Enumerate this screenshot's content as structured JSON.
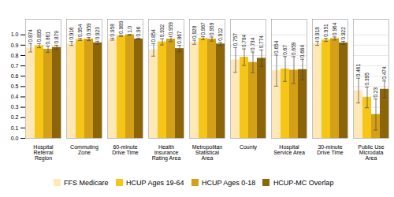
{
  "chart_data": {
    "type": "bar",
    "categories": [
      "Hospital\nReferral\nRegion",
      "Commuting\nZone",
      "60-minute\nDrive Time",
      "Health\nInsurance\nRating Area",
      "Metropolitan\nStatistical\nArea",
      "County",
      "Hospital\nService Area",
      "30-minute\nDrive Time",
      "Public Use\nMicrodata\nArea"
    ],
    "series": [
      {
        "name": "FFS Medicare",
        "color": "#FFE8B8",
        "values": [
          0.874,
          0.916,
          0.958,
          0.854,
          0.928,
          0.757,
          0.654,
          0.918,
          0.461
        ],
        "value_labels": [
          "0.874",
          "0.916",
          "0.958",
          "0.854",
          "0.928",
          "0.757",
          "0.654",
          "0.918",
          "0.461"
        ],
        "errors": [
          0.04,
          0.02,
          0.01,
          0.06,
          0.02,
          0.12,
          0.15,
          0.02,
          0.12
        ]
      },
      {
        "name": "HCUP Ages 19-64",
        "color": "#F5C518",
        "values": [
          0.895,
          0.954,
          0.989,
          0.932,
          0.967,
          0.784,
          0.67,
          0.951,
          0.395
        ],
        "value_labels": [
          "0.895",
          "0.954",
          "0.989",
          "0.932",
          "0.967",
          "0.784",
          "0.67",
          "0.951",
          "0.395"
        ],
        "errors": [
          0.02,
          0.01,
          0.005,
          0.03,
          0.015,
          0.08,
          0.12,
          0.015,
          0.1
        ]
      },
      {
        "name": "HCUP Ages 0-18",
        "color": "#D4A017",
        "values": [
          0.861,
          0.959,
          1.0,
          0.959,
          0.959,
          0.734,
          0.659,
          0.964,
          0.23
        ],
        "value_labels": [
          "0.861",
          "0.959",
          "1.0",
          "0.959",
          "0.959",
          "0.734",
          "0.659",
          "0.964",
          "0.23"
        ],
        "errors": [
          0.03,
          0.015,
          0.003,
          0.025,
          0.02,
          0.1,
          0.13,
          0.015,
          0.15
        ]
      },
      {
        "name": "HCUP-MC Overlap",
        "color": "#8B6508",
        "values": [
          0.879,
          0.923,
          0.96,
          0.867,
          0.912,
          0.774,
          0.664,
          0.922,
          0.474
        ],
        "value_labels": [
          "0.879",
          "0.923",
          "0.96",
          "0.867",
          "0.912",
          "0.774",
          "0.664",
          "0.922",
          "0.474"
        ],
        "errors": [
          0.02,
          0.015,
          0.008,
          0.03,
          0.015,
          0.08,
          0.1,
          0.015,
          0.08
        ]
      }
    ],
    "ylim": [
      0,
      1.15
    ],
    "yticks": [
      {
        "value": 0,
        "label": "0.0"
      },
      0.1,
      0.2,
      0.3,
      0.4,
      0.5,
      0.6,
      0.7,
      0.8,
      0.9,
      {
        "value": 1.0,
        "label": "1.0"
      }
    ],
    "grid": true,
    "data_labels": true,
    "legend": "lower center"
  }
}
